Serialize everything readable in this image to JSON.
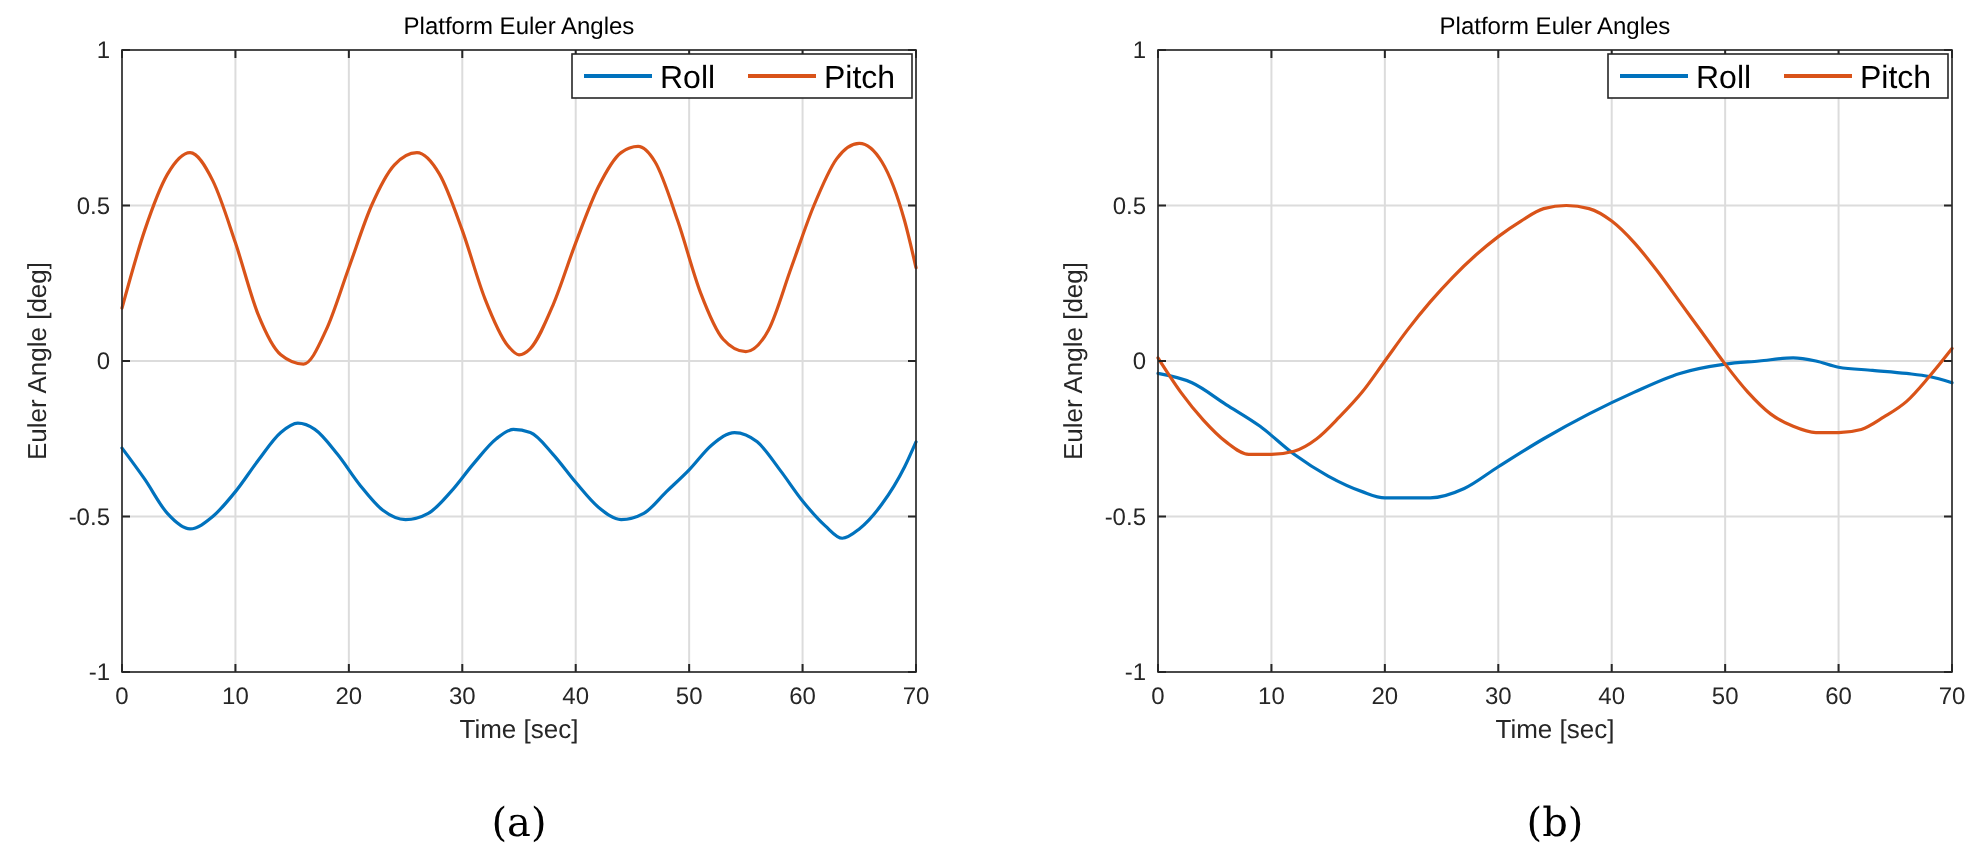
{
  "chart_data": [
    {
      "type": "line",
      "title": "Platform Euler Angles",
      "xlabel": "Time [sec]",
      "ylabel": "Euler Angle [deg]",
      "annotations": [
        "(a)"
      ],
      "xlim": [
        0,
        70
      ],
      "xticks": [
        0,
        10,
        20,
        30,
        40,
        50,
        60,
        70
      ],
      "ylim": [
        -1,
        1
      ],
      "yticks": [
        -1,
        -0.5,
        0,
        0.5,
        1
      ],
      "grid": true,
      "legend": "top right",
      "series": [
        {
          "name": "Roll",
          "color": "#0072bd",
          "x": [
            0,
            2,
            4,
            6,
            8,
            10,
            12,
            14,
            15.5,
            17,
            19,
            21,
            23,
            25,
            27,
            29,
            31,
            33,
            34.5,
            36,
            38,
            40,
            42,
            44,
            46,
            48,
            50,
            52,
            54,
            56,
            58,
            60,
            62,
            63.5,
            65,
            67,
            69,
            70
          ],
          "values": [
            -0.28,
            -0.38,
            -0.49,
            -0.54,
            -0.5,
            -0.42,
            -0.32,
            -0.23,
            -0.2,
            -0.22,
            -0.3,
            -0.4,
            -0.48,
            -0.51,
            -0.49,
            -0.42,
            -0.33,
            -0.25,
            -0.22,
            -0.23,
            -0.3,
            -0.39,
            -0.47,
            -0.51,
            -0.49,
            -0.42,
            -0.35,
            -0.27,
            -0.23,
            -0.26,
            -0.35,
            -0.45,
            -0.53,
            -0.57,
            -0.54,
            -0.46,
            -0.34,
            -0.26
          ]
        },
        {
          "name": "Pitch",
          "color": "#d95319",
          "x": [
            0,
            2,
            4,
            6,
            8,
            10,
            12,
            14,
            16,
            18,
            20,
            22,
            24,
            26,
            28,
            30,
            32,
            34,
            35,
            36,
            38,
            40,
            42,
            44,
            45.5,
            47,
            49,
            51,
            53,
            55,
            57,
            59,
            61,
            63,
            65,
            67,
            69,
            70
          ],
          "values": [
            0.17,
            0.42,
            0.6,
            0.67,
            0.58,
            0.38,
            0.15,
            0.02,
            -0.01,
            0.1,
            0.3,
            0.5,
            0.63,
            0.67,
            0.6,
            0.42,
            0.2,
            0.05,
            0.02,
            0.04,
            0.18,
            0.38,
            0.56,
            0.67,
            0.69,
            0.64,
            0.45,
            0.22,
            0.07,
            0.03,
            0.1,
            0.3,
            0.5,
            0.65,
            0.7,
            0.64,
            0.45,
            0.3
          ]
        }
      ]
    },
    {
      "type": "line",
      "title": "Platform Euler Angles",
      "xlabel": "Time [sec]",
      "ylabel": "Euler Angle [deg]",
      "annotations": [
        "(b)"
      ],
      "xlim": [
        0,
        70
      ],
      "xticks": [
        0,
        10,
        20,
        30,
        40,
        50,
        60,
        70
      ],
      "ylim": [
        -1,
        1
      ],
      "yticks": [
        -1,
        -0.5,
        0,
        0.5,
        1
      ],
      "grid": true,
      "legend": "top right",
      "series": [
        {
          "name": "Roll",
          "color": "#0072bd",
          "x": [
            0,
            3,
            6,
            9,
            12,
            15,
            18,
            20,
            24,
            27,
            30,
            34,
            38,
            42,
            46,
            50,
            53,
            56,
            58,
            60,
            63,
            66,
            68,
            70
          ],
          "values": [
            -0.04,
            -0.07,
            -0.14,
            -0.21,
            -0.3,
            -0.37,
            -0.42,
            -0.44,
            -0.44,
            -0.41,
            -0.34,
            -0.25,
            -0.17,
            -0.1,
            -0.04,
            -0.01,
            0,
            0.01,
            0,
            -0.02,
            -0.03,
            -0.04,
            -0.05,
            -0.07
          ]
        },
        {
          "name": "Pitch",
          "color": "#d95319",
          "x": [
            0,
            2,
            4,
            6,
            8,
            10,
            12,
            14,
            16,
            18,
            20,
            22,
            24,
            26,
            28,
            30,
            32,
            34,
            36,
            38,
            40,
            42,
            44,
            46,
            48,
            50,
            52,
            54,
            56,
            58,
            60,
            62,
            64,
            66,
            68,
            70
          ],
          "values": [
            0.01,
            -0.1,
            -0.19,
            -0.26,
            -0.3,
            -0.3,
            -0.29,
            -0.25,
            -0.18,
            -0.1,
            0,
            0.1,
            0.19,
            0.27,
            0.34,
            0.4,
            0.45,
            0.49,
            0.5,
            0.49,
            0.45,
            0.38,
            0.29,
            0.19,
            0.09,
            -0.01,
            -0.1,
            -0.17,
            -0.21,
            -0.23,
            -0.23,
            -0.22,
            -0.18,
            -0.13,
            -0.05,
            0.04
          ]
        }
      ]
    }
  ]
}
